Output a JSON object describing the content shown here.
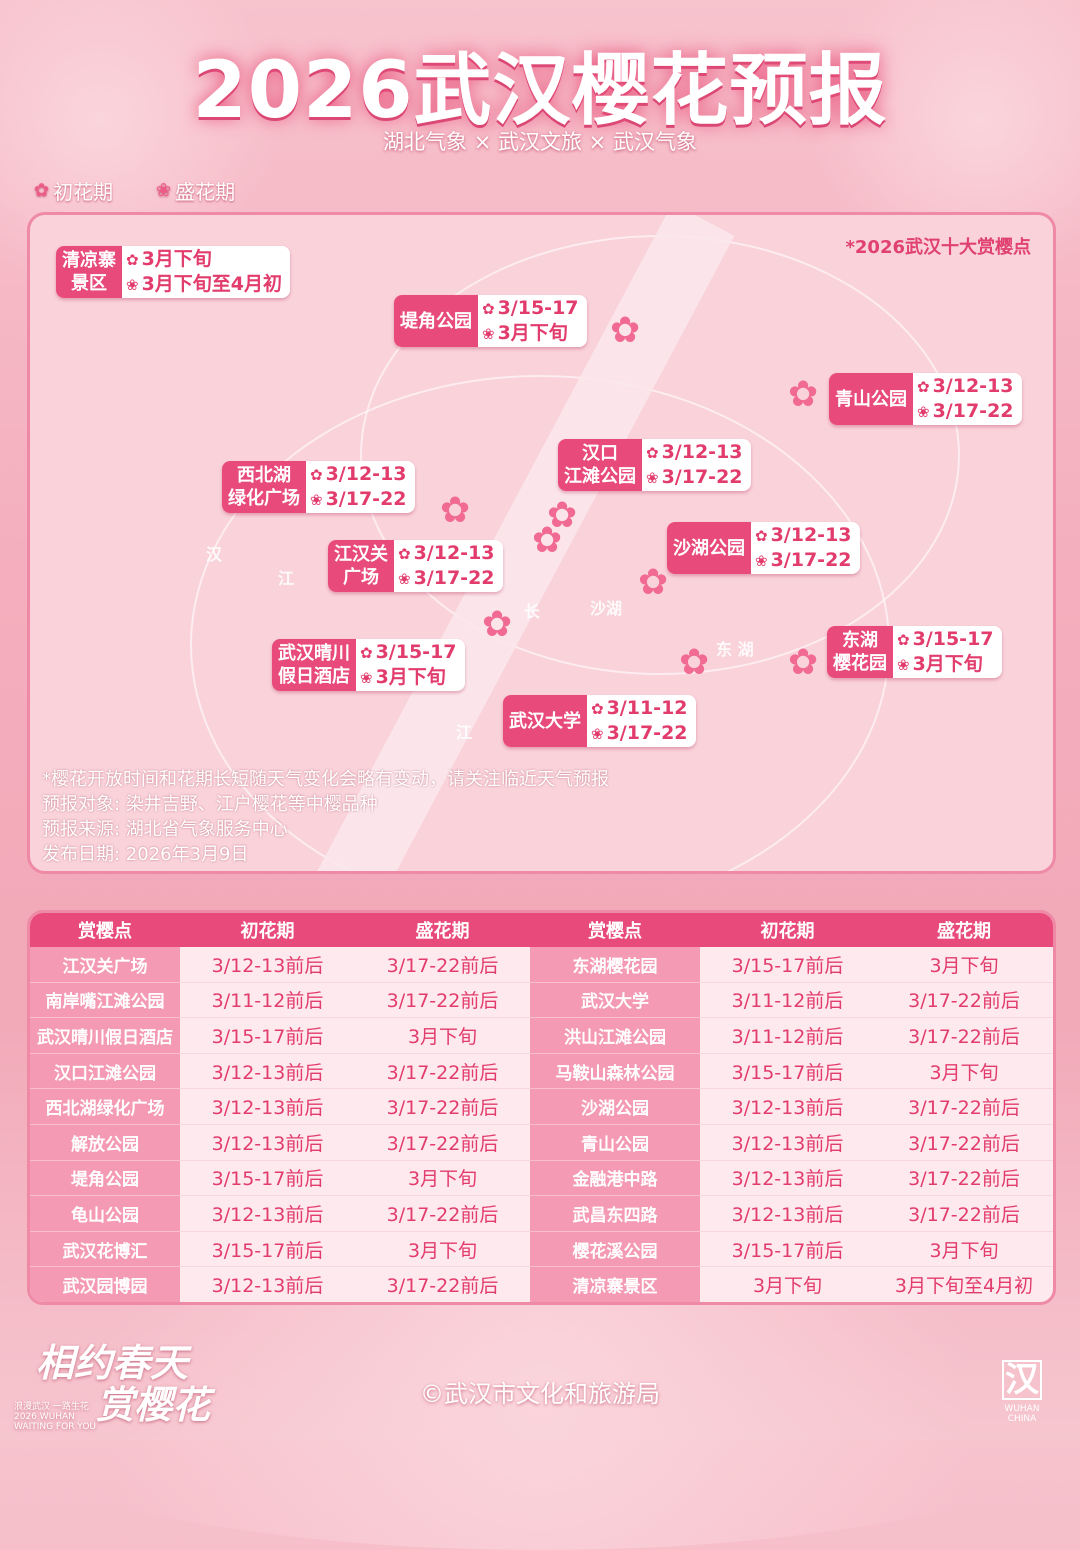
{
  "title": "2026武汉樱花预报",
  "subtitle": "湖北气象 × 武汉文旅 × 武汉气象",
  "legend": [
    {
      "icon": "cherry-blossom-outline-icon",
      "label": "初花期"
    },
    {
      "icon": "cherry-blossom-filled-icon",
      "label": "盛花期"
    }
  ],
  "colors": {
    "accent": "#e84a7b",
    "text": "#e23c6d",
    "background": "#f4aebd"
  },
  "map": {
    "top10_label": "*2026武汉十大赏樱点",
    "geo_labels": [
      "汉",
      "江",
      "长",
      "沙湖",
      "东 湖",
      "江"
    ],
    "spots": [
      {
        "name": "清凉寨\n景区",
        "early": "3月下旬",
        "peak": "3月下旬至4月初"
      },
      {
        "name": "堤角公园",
        "early": "3/15-17",
        "peak": "3月下旬"
      },
      {
        "name": "青山公园",
        "early": "3/12-13",
        "peak": "3/17-22"
      },
      {
        "name": "汉口\n江滩公园",
        "early": "3/12-13",
        "peak": "3/17-22"
      },
      {
        "name": "西北湖\n绿化广场",
        "early": "3/12-13",
        "peak": "3/17-22"
      },
      {
        "name": "沙湖公园",
        "early": "3/12-13",
        "peak": "3/17-22"
      },
      {
        "name": "江汉关\n广场",
        "early": "3/12-13",
        "peak": "3/17-22"
      },
      {
        "name": "武汉晴川\n假日酒店",
        "early": "3/15-17",
        "peak": "3月下旬"
      },
      {
        "name": "东湖\n樱花园",
        "early": "3/15-17",
        "peak": "3月下旬"
      },
      {
        "name": "武汉大学",
        "early": "3/11-12",
        "peak": "3/17-22"
      }
    ],
    "notes": [
      "*樱花开放时间和花期长短随天气变化会略有变动，请关注临近天气预报",
      "预报对象: 染井吉野、江户樱花等中樱品种",
      "预报来源: 湖北省气象服务中心",
      "发布日期: 2026年3月9日"
    ]
  },
  "table": {
    "headers": [
      "赏樱点",
      "初花期",
      "盛花期",
      "赏樱点",
      "初花期",
      "盛花期"
    ],
    "rows": [
      [
        "江汉关广场",
        "3/12-13前后",
        "3/17-22前后",
        "东湖樱花园",
        "3/15-17前后",
        "3月下旬"
      ],
      [
        "南岸嘴江滩公园",
        "3/11-12前后",
        "3/17-22前后",
        "武汉大学",
        "3/11-12前后",
        "3/17-22前后"
      ],
      [
        "武汉晴川假日酒店",
        "3/15-17前后",
        "3月下旬",
        "洪山江滩公园",
        "3/11-12前后",
        "3/17-22前后"
      ],
      [
        "汉口江滩公园",
        "3/12-13前后",
        "3/17-22前后",
        "马鞍山森林公园",
        "3/15-17前后",
        "3月下旬"
      ],
      [
        "西北湖绿化广场",
        "3/12-13前后",
        "3/17-22前后",
        "沙湖公园",
        "3/12-13前后",
        "3/17-22前后"
      ],
      [
        "解放公园",
        "3/12-13前后",
        "3/17-22前后",
        "青山公园",
        "3/12-13前后",
        "3/17-22前后"
      ],
      [
        "堤角公园",
        "3/15-17前后",
        "3月下旬",
        "金融港中路",
        "3/12-13前后",
        "3/17-22前后"
      ],
      [
        "龟山公园",
        "3/12-13前后",
        "3/17-22前后",
        "武昌东四路",
        "3/12-13前后",
        "3/17-22前后"
      ],
      [
        "武汉花博汇",
        "3/15-17前后",
        "3月下旬",
        "樱花溪公园",
        "3/15-17前后",
        "3月下旬"
      ],
      [
        "武汉园博园",
        "3/12-13前后",
        "3/17-22前后",
        "清凉寨景区",
        "3月下旬",
        "3月下旬至4月初"
      ]
    ]
  },
  "footer": {
    "slogan_line1": "相约春天",
    "slogan_line2": "赏樱花",
    "slogan_small": "浪漫武汉 一路生花 2026 WUHAN WAITING FOR YOU",
    "copyright": "©武汉市文化和旅游局",
    "logo_text": "WUHAN CHINA",
    "logo_mark": "汉"
  }
}
